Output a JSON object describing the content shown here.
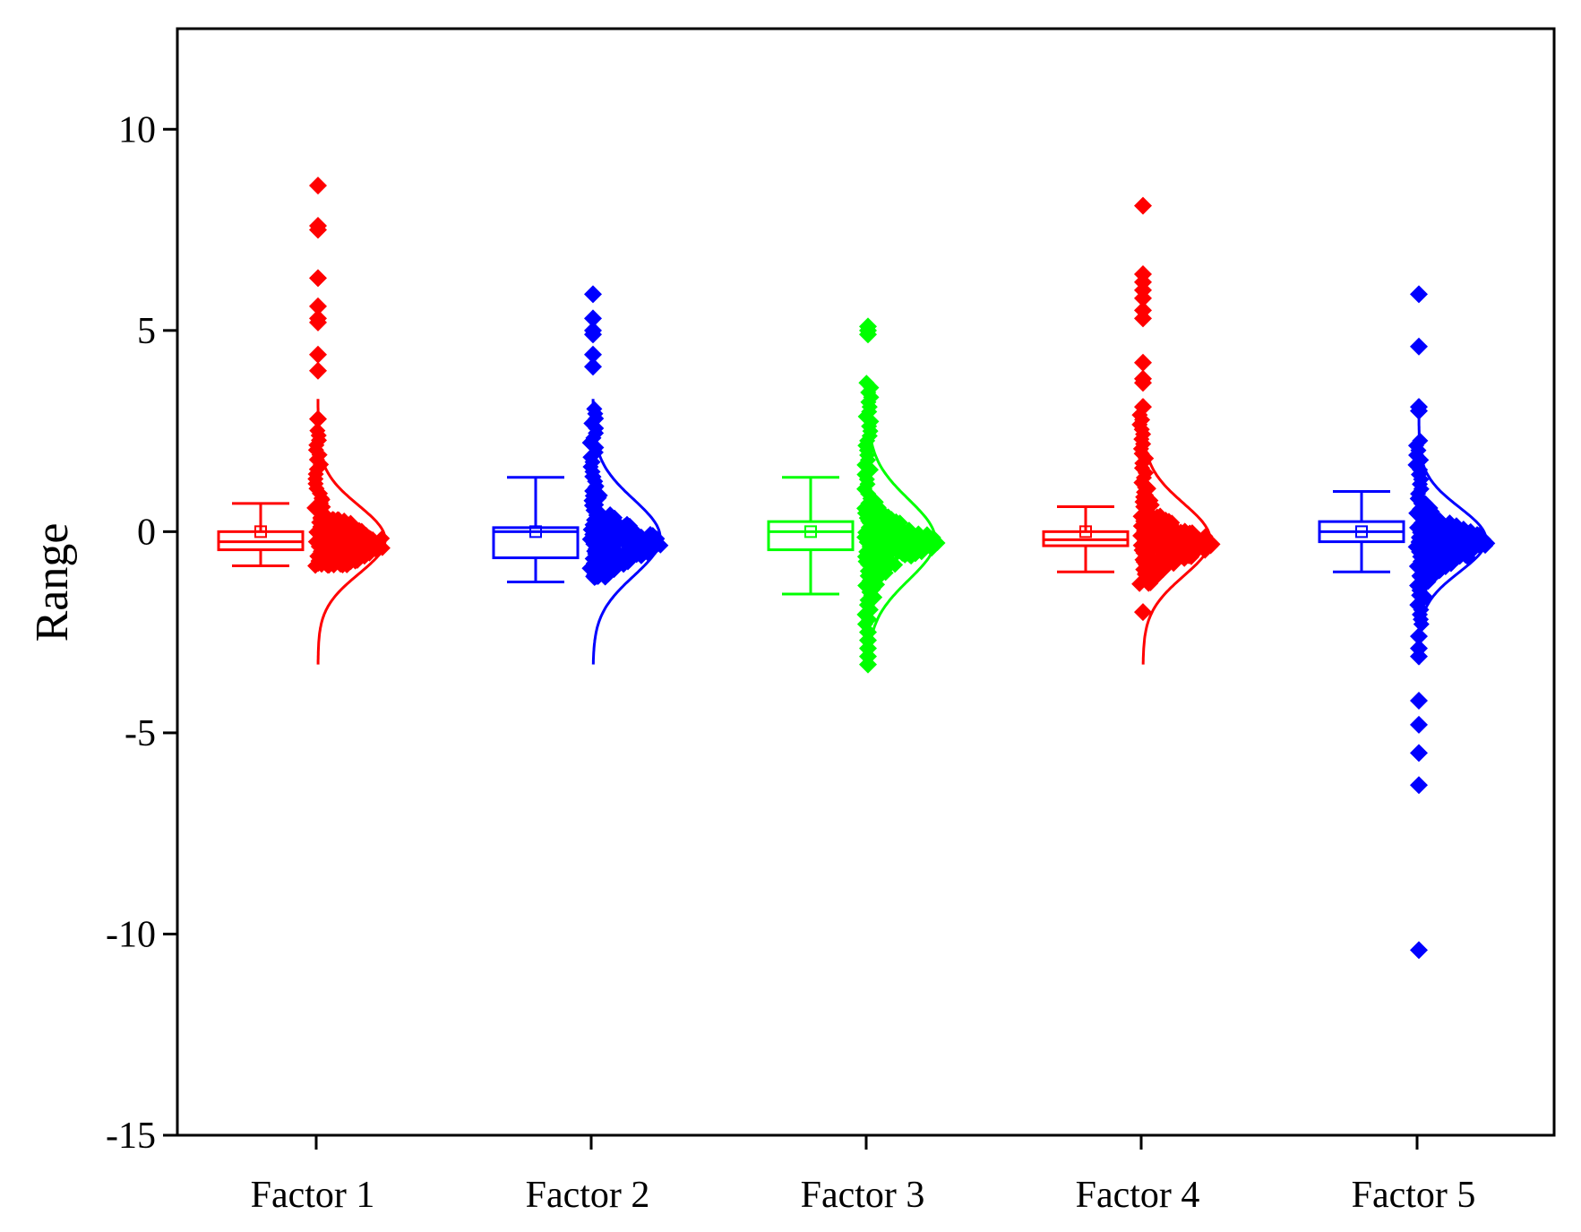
{
  "chart_data": {
    "type": "box-scatter-distribution",
    "title": "",
    "xlabel": "",
    "ylabel": "Range",
    "ylim": [
      -15,
      12.5
    ],
    "yticks": [
      -15,
      -10,
      -5,
      0,
      5,
      10
    ],
    "ytick_labels": [
      "-15",
      "-10",
      "-5",
      "0",
      "5",
      "10"
    ],
    "grid": false,
    "categories": [
      "Factor 1",
      "Factor 2",
      "Factor 3",
      "Factor 4",
      "Factor 5"
    ],
    "series": [
      {
        "name": "Factor 1",
        "color": "#ff0000",
        "box": {
          "whisker_low": -0.85,
          "q1": -0.45,
          "median": -0.25,
          "q3": 0.0,
          "whisker_high": 0.7,
          "mean": 0.0
        },
        "normal_curve": {
          "mean": -0.2,
          "sd": 0.85,
          "min": -3.3,
          "max": 3.3
        },
        "outliers": [
          8.6,
          7.6,
          7.5,
          6.3,
          5.6,
          5.3,
          5.2,
          4.4,
          4.0,
          2.8
        ],
        "cloud_range": [
          -0.85,
          2.6
        ]
      },
      {
        "name": "Factor 2",
        "color": "#0000ff",
        "box": {
          "whisker_low": -1.25,
          "q1": -0.65,
          "median": 0.0,
          "q3": 0.1,
          "whisker_high": 1.35,
          "mean": 0.0
        },
        "normal_curve": {
          "mean": -0.15,
          "sd": 0.95,
          "min": -3.3,
          "max": 3.3
        },
        "outliers": [
          5.9,
          5.3,
          5.0,
          4.9,
          4.4,
          4.1
        ],
        "cloud_range": [
          -1.15,
          3.1
        ]
      },
      {
        "name": "Factor 3",
        "color": "#00ff00",
        "box": {
          "whisker_low": -1.55,
          "q1": -0.45,
          "median": 0.0,
          "q3": 0.25,
          "whisker_high": 1.35,
          "mean": 0.0
        },
        "normal_curve": {
          "mean": -0.2,
          "sd": 1.0,
          "min": -3.3,
          "max": 3.3
        },
        "outliers": [
          5.1,
          5.0,
          4.9,
          -2.5,
          -2.7,
          -2.9,
          -3.1,
          -3.3
        ],
        "cloud_range": [
          -2.3,
          3.8
        ]
      },
      {
        "name": "Factor 4",
        "color": "#ff0000",
        "box": {
          "whisker_low": -1.0,
          "q1": -0.35,
          "median": -0.2,
          "q3": 0.0,
          "whisker_high": 0.62,
          "mean": 0.0
        },
        "normal_curve": {
          "mean": -0.2,
          "sd": 0.9,
          "min": -3.3,
          "max": 3.3
        },
        "outliers": [
          8.1,
          6.4,
          6.2,
          6.0,
          5.8,
          5.5,
          5.3,
          4.2,
          3.8,
          3.7,
          3.1,
          -2.0
        ],
        "cloud_range": [
          -1.3,
          3.0
        ]
      },
      {
        "name": "Factor 5",
        "color": "#0000ff",
        "box": {
          "whisker_low": -1.0,
          "q1": -0.25,
          "median": 0.0,
          "q3": 0.25,
          "whisker_high": 1.0,
          "mean": 0.0
        },
        "normal_curve": {
          "mean": -0.2,
          "sd": 0.8,
          "min": -3.3,
          "max": 3.3
        },
        "outliers": [
          5.9,
          4.6,
          3.1,
          3.0,
          -2.6,
          -2.9,
          -3.1,
          -4.2,
          -4.8,
          -5.5,
          -6.3,
          -10.4
        ],
        "cloud_range": [
          -2.3,
          2.3
        ]
      }
    ]
  }
}
